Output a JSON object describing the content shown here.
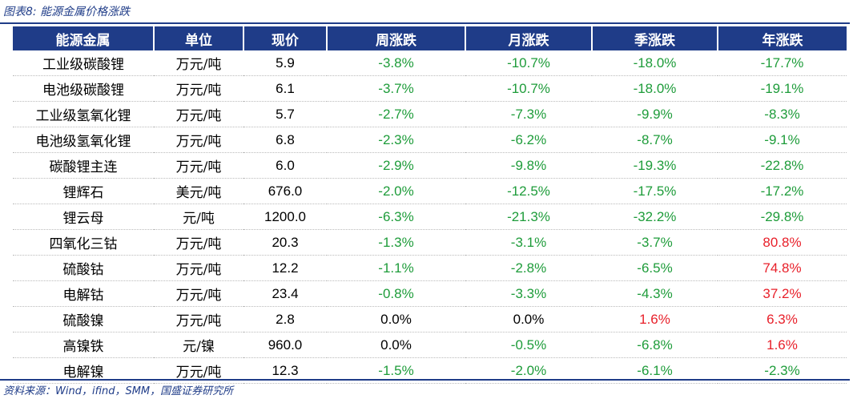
{
  "caption": "图表8:  能源金属价格涨跌",
  "source": "资料来源：Wind，ifind，SMM，国盛证券研究所",
  "colors": {
    "header_bg": "#1f3c88",
    "up": "#e8202a",
    "down": "#1e9c3a"
  },
  "table": {
    "headers": [
      "能源金属",
      "单位",
      "现价",
      "周涨跌",
      "月涨跌",
      "季涨跌",
      "年涨跌"
    ],
    "rows": [
      {
        "name": "工业级碳酸锂",
        "unit": "万元/吨",
        "price": "5.9",
        "week": "-3.8%",
        "month": "-10.7%",
        "quarter": "-18.0%",
        "year": "-17.7%"
      },
      {
        "name": "电池级碳酸锂",
        "unit": "万元/吨",
        "price": "6.1",
        "week": "-3.7%",
        "month": "-10.7%",
        "quarter": "-18.0%",
        "year": "-19.1%"
      },
      {
        "name": "工业级氢氧化锂",
        "unit": "万元/吨",
        "price": "5.7",
        "week": "-2.7%",
        "month": "-7.3%",
        "quarter": "-9.9%",
        "year": "-8.3%"
      },
      {
        "name": "电池级氢氧化锂",
        "unit": "万元/吨",
        "price": "6.8",
        "week": "-2.3%",
        "month": "-6.2%",
        "quarter": "-8.7%",
        "year": "-9.1%"
      },
      {
        "name": "碳酸锂主连",
        "unit": "万元/吨",
        "price": "6.0",
        "week": "-2.9%",
        "month": "-9.8%",
        "quarter": "-19.3%",
        "year": "-22.8%"
      },
      {
        "name": "锂辉石",
        "unit": "美元/吨",
        "price": "676.0",
        "week": "-2.0%",
        "month": "-12.5%",
        "quarter": "-17.5%",
        "year": "-17.2%"
      },
      {
        "name": "锂云母",
        "unit": "元/吨",
        "price": "1200.0",
        "week": "-6.3%",
        "month": "-21.3%",
        "quarter": "-32.2%",
        "year": "-29.8%"
      },
      {
        "name": "四氧化三钴",
        "unit": "万元/吨",
        "price": "20.3",
        "week": "-1.3%",
        "month": "-3.1%",
        "quarter": "-3.7%",
        "year": "80.8%"
      },
      {
        "name": "硫酸钴",
        "unit": "万元/吨",
        "price": "12.2",
        "week": "-1.1%",
        "month": "-2.8%",
        "quarter": "-6.5%",
        "year": "74.8%"
      },
      {
        "name": "电解钴",
        "unit": "万元/吨",
        "price": "23.4",
        "week": "-0.8%",
        "month": "-3.3%",
        "quarter": "-4.3%",
        "year": "37.2%"
      },
      {
        "name": "硫酸镍",
        "unit": "万元/吨",
        "price": "2.8",
        "week": "0.0%",
        "month": "0.0%",
        "quarter": "1.6%",
        "year": "6.3%"
      },
      {
        "name": "高镍铁",
        "unit": "元/镍",
        "price": "960.0",
        "week": "0.0%",
        "month": "-0.5%",
        "quarter": "-6.8%",
        "year": "1.6%"
      },
      {
        "name": "电解镍",
        "unit": "万元/吨",
        "price": "12.3",
        "week": "-1.5%",
        "month": "-2.0%",
        "quarter": "-6.1%",
        "year": "-2.3%"
      }
    ]
  }
}
